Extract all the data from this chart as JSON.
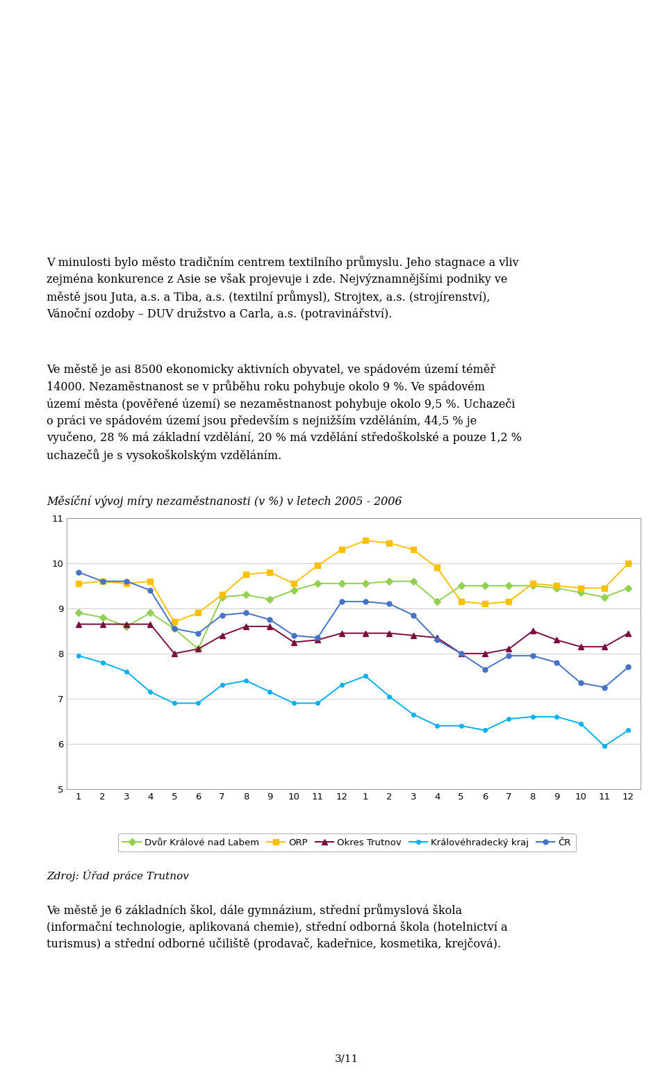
{
  "title": "Měsíční vývoj míry nezaměstnanosti (v %) v letech 2005 - 2006",
  "page_number": "3/11",
  "ylim": [
    5,
    11
  ],
  "yticks": [
    5,
    6,
    7,
    8,
    9,
    10,
    11
  ],
  "xtick_labels": [
    "1",
    "2",
    "3",
    "4",
    "5",
    "6",
    "7",
    "8",
    "9",
    "10",
    "11",
    "12",
    "1",
    "2",
    "3",
    "4",
    "5",
    "6",
    "7",
    "8",
    "9",
    "10",
    "11",
    "12"
  ],
  "series": {
    "Dvůr Králové nad Labem": {
      "color": "#92d050",
      "marker": "D",
      "markersize": 5,
      "values": [
        8.9,
        8.8,
        8.6,
        8.9,
        8.55,
        8.1,
        9.25,
        9.3,
        9.2,
        9.4,
        9.55,
        9.55,
        9.55,
        9.6,
        9.6,
        9.15,
        9.5,
        9.5,
        9.5,
        9.5,
        9.45,
        9.35,
        9.25,
        9.45
      ]
    },
    "ORP": {
      "color": "#ffc000",
      "marker": "s",
      "markersize": 6,
      "values": [
        9.55,
        9.6,
        9.55,
        9.6,
        8.7,
        8.9,
        9.3,
        9.75,
        9.8,
        9.55,
        9.95,
        10.3,
        10.5,
        10.45,
        10.3,
        9.9,
        9.15,
        9.1,
        9.15,
        9.55,
        9.5,
        9.45,
        9.45,
        10.0
      ]
    },
    "Okres Trutnov": {
      "color": "#7b0c3e",
      "marker": "^",
      "markersize": 6,
      "values": [
        8.65,
        8.65,
        8.65,
        8.65,
        8.0,
        8.1,
        8.4,
        8.6,
        8.6,
        8.25,
        8.3,
        8.45,
        8.45,
        8.45,
        8.4,
        8.35,
        8.0,
        8.0,
        8.1,
        8.5,
        8.3,
        8.15,
        8.15,
        8.45
      ]
    },
    "Královéhradecký kraj": {
      "color": "#00b0f0",
      "marker": "o",
      "markersize": 4,
      "values": [
        7.95,
        7.8,
        7.6,
        7.15,
        6.9,
        6.9,
        7.3,
        7.4,
        7.15,
        6.9,
        6.9,
        7.3,
        7.5,
        7.05,
        6.65,
        6.4,
        6.4,
        6.3,
        6.55,
        6.6,
        6.6,
        6.45,
        5.95,
        6.3
      ]
    },
    "ČR": {
      "color": "#4472c4",
      "marker": "o",
      "markersize": 5,
      "values": [
        9.8,
        9.6,
        9.6,
        9.4,
        8.55,
        8.45,
        8.85,
        8.9,
        8.75,
        8.4,
        8.35,
        9.15,
        9.15,
        9.1,
        8.85,
        8.3,
        8.0,
        7.65,
        7.95,
        7.95,
        7.8,
        7.35,
        7.25,
        7.7
      ]
    }
  },
  "legend_order": [
    "Dvůr Králové nad Labem",
    "ORP",
    "Okres Trutnov",
    "Královéhradecký kraj",
    "ČR"
  ],
  "background_color": "#ffffff",
  "grid_color": "#d0d0d0"
}
